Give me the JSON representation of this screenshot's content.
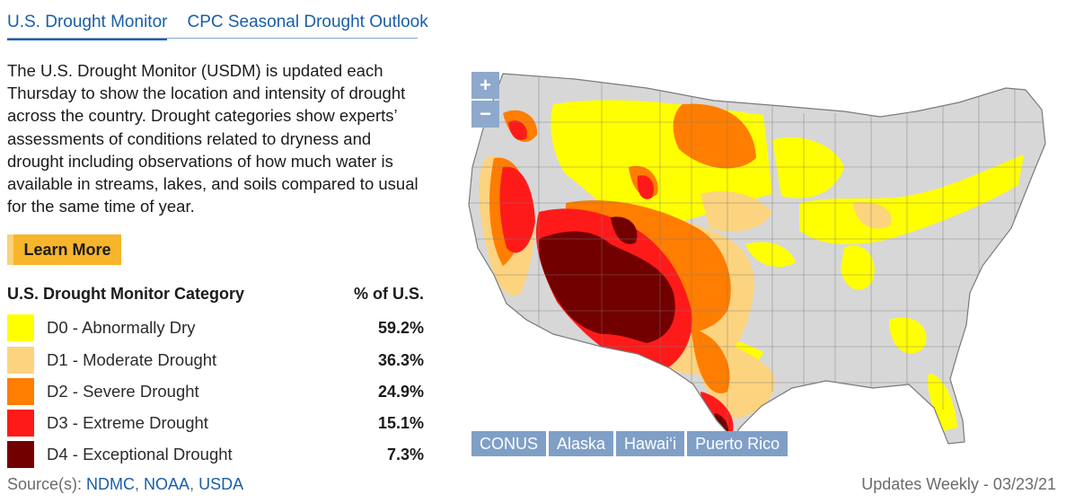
{
  "tabs": [
    {
      "label": "U.S. Drought Monitor",
      "active": true
    },
    {
      "label": "CPC Seasonal Drought Outlook",
      "active": false
    }
  ],
  "intro_text": "The U.S. Drought Monitor (USDM) is updated each Thursday to show the location and intensity of drought across the country. Drought categories show experts’ assessments of conditions related to dryness and drought including observations of how much water is available in streams, lakes, and soils compared to usual for the same time of year.",
  "learn_more_label": "Learn More",
  "legend": {
    "category_header": "U.S. Drought Monitor Category",
    "percent_header": "% of U.S.",
    "rows": [
      {
        "label": "D0 - Abnormally Dry",
        "percent": "59.2%",
        "color": "#ffff00"
      },
      {
        "label": "D1 - Moderate Drought",
        "percent": "36.3%",
        "color": "#fcd37f"
      },
      {
        "label": "D2 - Severe Drought",
        "percent": "24.9%",
        "color": "#ff7d00"
      },
      {
        "label": "D3 - Extreme Drought",
        "percent": "15.1%",
        "color": "#ff1a1a"
      },
      {
        "label": "D4 - Exceptional Drought",
        "percent": "7.3%",
        "color": "#730000"
      }
    ]
  },
  "sources": {
    "prefix": "Source(s):",
    "links": [
      "NDMC",
      "NOAA",
      "USDA"
    ]
  },
  "map": {
    "zoom_in": "+",
    "zoom_out": "−",
    "base_color": "#d7d7d7",
    "border_color": "#7a7a7a",
    "regions": [
      "CONUS",
      "Alaska",
      "Hawai‘i",
      "Puerto Rico"
    ]
  },
  "updates": "Updates Weekly  -  03/23/21"
}
